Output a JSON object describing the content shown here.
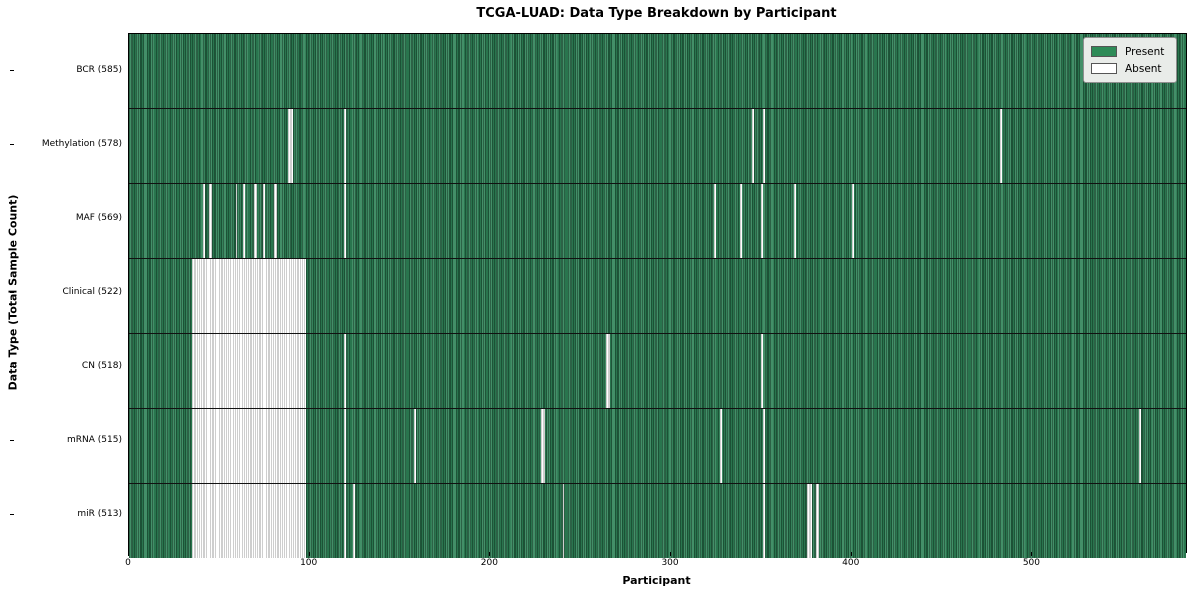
{
  "figure": {
    "background_color": "#ffffff",
    "present_color": "#2e8b57",
    "absent_color": "#ffffff"
  },
  "chart_data": {
    "type": "heatmap",
    "title": "TCGA-LUAD: Data Type Breakdown by Participant",
    "xlabel": "Participant",
    "ylabel": "Data Type (Total Sample Count)",
    "x_ticks": [
      0,
      100,
      200,
      300,
      400,
      500
    ],
    "x_range": [
      0,
      585
    ],
    "n_participants": 585,
    "grid": "row-separators",
    "legend_position": "upper-right",
    "legend": [
      {
        "label": "Present",
        "color": "#2e8b57"
      },
      {
        "label": "Absent",
        "color": "#ffffff"
      }
    ],
    "rows": [
      {
        "label": "BCR (585)",
        "present_count": 585,
        "absent_ranges": []
      },
      {
        "label": "Methylation (578)",
        "present_count": 578,
        "absent_ranges": [
          [
            88,
            3
          ],
          [
            119,
            1
          ],
          [
            345,
            1
          ],
          [
            351,
            1
          ],
          [
            482,
            1
          ]
        ]
      },
      {
        "label": "MAF (569)",
        "present_count": 569,
        "absent_ranges": [
          [
            41,
            1
          ],
          [
            44,
            2
          ],
          [
            59,
            1
          ],
          [
            63,
            1
          ],
          [
            69,
            2
          ],
          [
            74,
            1
          ],
          [
            80,
            2
          ],
          [
            119,
            1
          ],
          [
            324,
            1
          ],
          [
            338,
            1
          ],
          [
            350,
            1
          ],
          [
            368,
            1
          ],
          [
            400,
            1
          ]
        ]
      },
      {
        "label": "Clinical (522)",
        "present_count": 522,
        "absent_ranges": [
          [
            35,
            63
          ]
        ]
      },
      {
        "label": "CN (518)",
        "present_count": 518,
        "absent_ranges": [
          [
            35,
            63
          ],
          [
            119,
            1
          ],
          [
            264,
            2
          ],
          [
            350,
            1
          ]
        ]
      },
      {
        "label": "mRNA (515)",
        "present_count": 515,
        "absent_ranges": [
          [
            35,
            63
          ],
          [
            119,
            1
          ],
          [
            158,
            1
          ],
          [
            228,
            2
          ],
          [
            327,
            1
          ],
          [
            351,
            1
          ],
          [
            559,
            1
          ]
        ]
      },
      {
        "label": "miR (513)",
        "present_count": 513,
        "absent_ranges": [
          [
            35,
            63
          ],
          [
            119,
            1
          ],
          [
            124,
            1
          ],
          [
            240,
            1
          ],
          [
            351,
            1
          ],
          [
            375,
            3
          ],
          [
            380,
            2
          ]
        ]
      }
    ]
  }
}
